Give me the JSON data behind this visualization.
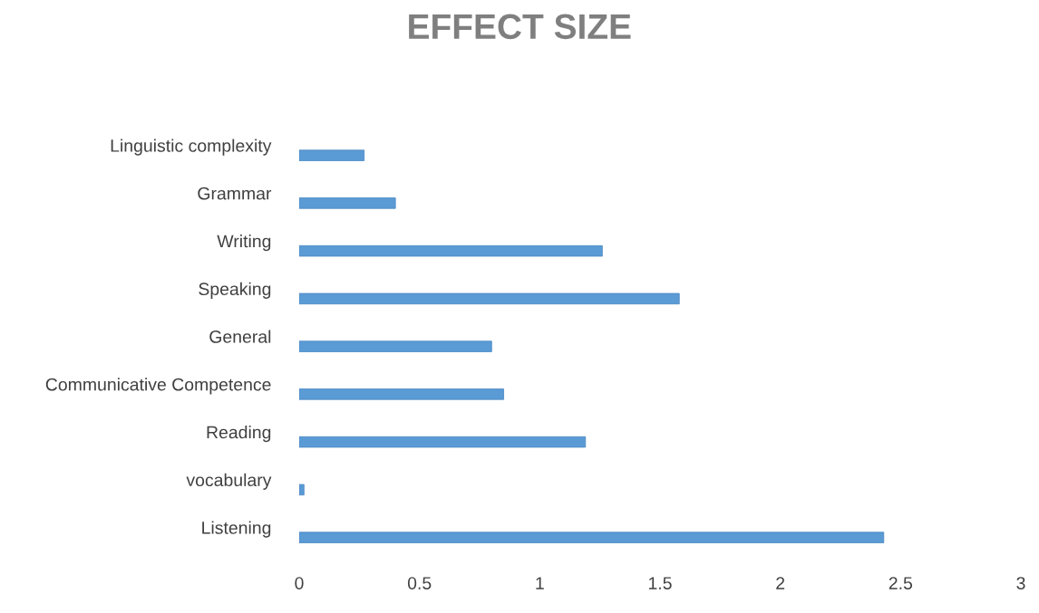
{
  "chart_data": {
    "type": "bar",
    "orientation": "horizontal",
    "title": "EFFECT SIZE",
    "categories": [
      "Linguistic complexity",
      "Grammar",
      "Writing",
      "Speaking",
      "General",
      "Communicative Competence",
      "Reading",
      "vocabulary",
      "Listening"
    ],
    "values": [
      0.27,
      0.4,
      1.26,
      1.58,
      0.8,
      0.85,
      1.19,
      0.02,
      2.43
    ],
    "color": "#5b9bd5",
    "xlim": [
      0,
      3
    ],
    "xticks": [
      0,
      0.5,
      1,
      1.5,
      2,
      2.5,
      3
    ],
    "grid": false
  }
}
